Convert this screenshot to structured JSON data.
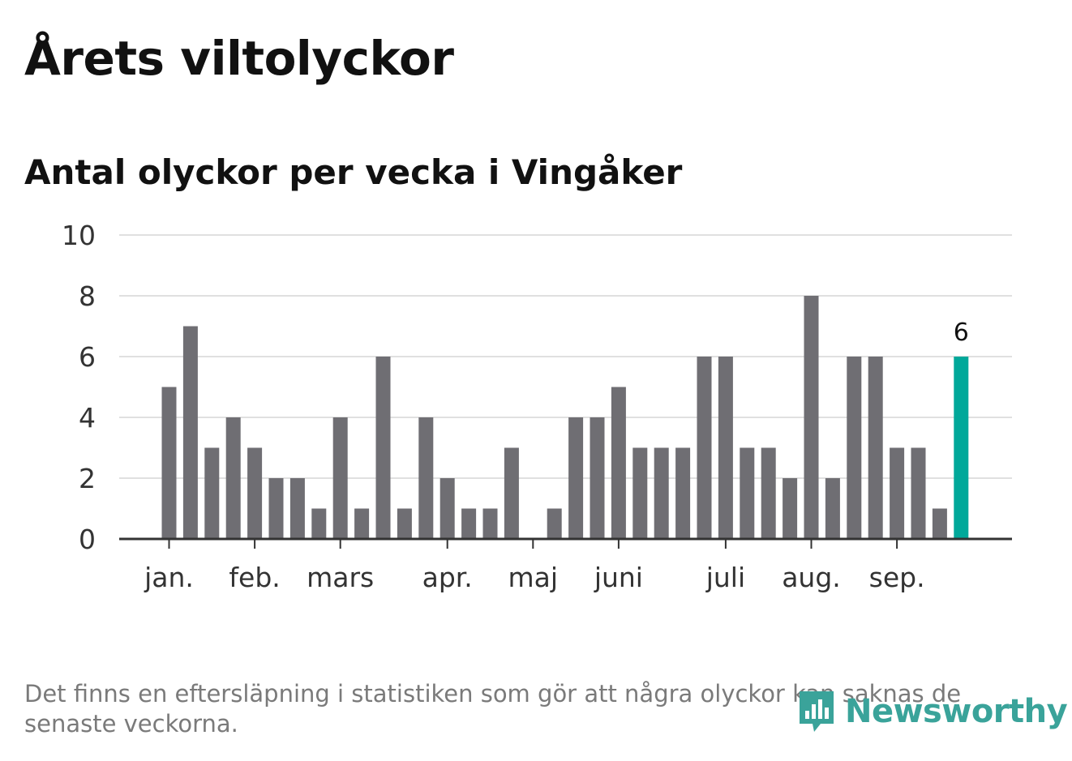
{
  "title": "Årets viltolyckor",
  "subtitle": "Antal olyckor per vecka i Vingåker",
  "footnote": "Det finns en eftersläpning i statistiken som gör att några olyckor kan saknas de senaste veckorna.",
  "logo": {
    "text": "Newsworthy",
    "icon": "newsworthy-logo-icon"
  },
  "colors": {
    "bar": "#6f6e73",
    "highlight": "#00a89a",
    "grid": "#e0e0e0",
    "axis": "#333333",
    "logo": "#3aa39a"
  },
  "chart_data": {
    "type": "bar",
    "title": "Antal olyckor per vecka i Vingåker",
    "xlabel": "",
    "ylabel": "",
    "ylim": [
      0,
      10
    ],
    "yticks": [
      0,
      2,
      4,
      6,
      8,
      10
    ],
    "grid": true,
    "month_labels": [
      {
        "label": "jan.",
        "week": 1
      },
      {
        "label": "feb.",
        "week": 5
      },
      {
        "label": "mars",
        "week": 9
      },
      {
        "label": "apr.",
        "week": 14
      },
      {
        "label": "maj",
        "week": 18
      },
      {
        "label": "juni",
        "week": 22
      },
      {
        "label": "juli",
        "week": 27
      },
      {
        "label": "aug.",
        "week": 31
      },
      {
        "label": "sep.",
        "week": 35
      }
    ],
    "weeks": [
      1,
      2,
      3,
      4,
      5,
      6,
      7,
      8,
      9,
      10,
      11,
      12,
      13,
      14,
      15,
      16,
      17,
      18,
      19,
      20,
      21,
      22,
      23,
      24,
      25,
      26,
      27,
      28,
      29,
      30,
      31,
      32,
      33,
      34,
      35,
      36,
      37,
      38
    ],
    "values": [
      5,
      7,
      3,
      4,
      3,
      2,
      2,
      1,
      4,
      1,
      6,
      1,
      4,
      2,
      1,
      1,
      3,
      0,
      1,
      4,
      4,
      5,
      3,
      3,
      3,
      6,
      6,
      3,
      3,
      2,
      8,
      2,
      6,
      6,
      3,
      3,
      1,
      6
    ],
    "highlight_index": 37,
    "highlight_label": "6"
  }
}
